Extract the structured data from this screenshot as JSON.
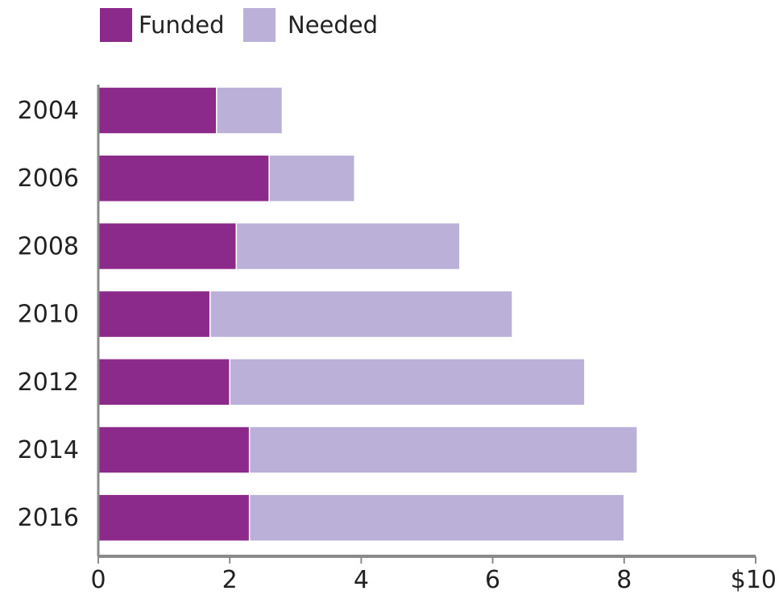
{
  "colors": {
    "funded": "#8b2a8b",
    "needed": "#bbb0d8",
    "axis": "#8a8a8a",
    "text": "#222222"
  },
  "chart_data": {
    "type": "bar",
    "orientation": "horizontal",
    "stacked": true,
    "categories": [
      "2004",
      "2006",
      "2008",
      "2010",
      "2012",
      "2014",
      "2016"
    ],
    "series": [
      {
        "name": "Funded",
        "values": [
          1.8,
          2.6,
          2.1,
          1.7,
          2.0,
          2.3,
          2.3
        ]
      },
      {
        "name": "Needed",
        "values": [
          1.0,
          1.3,
          3.4,
          4.6,
          5.4,
          5.9,
          5.7
        ]
      }
    ],
    "xlim": [
      0,
      10
    ],
    "xticks": [
      0,
      2,
      4,
      6,
      8,
      10
    ],
    "xtick_labels": [
      "0",
      "2",
      "4",
      "6",
      "8",
      "$10"
    ],
    "legend_position": "top-left",
    "grid": false
  }
}
